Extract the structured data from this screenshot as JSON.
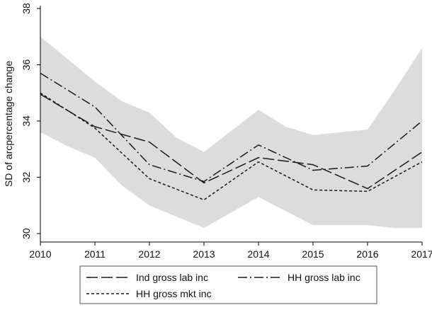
{
  "chart_data": {
    "type": "line",
    "xlabel": "",
    "ylabel": "SD of arcpercentage change",
    "x": [
      2010,
      2011,
      2012,
      2013,
      2014,
      2015,
      2016,
      2017
    ],
    "xlim": [
      2010,
      2017
    ],
    "ylim": [
      29.7,
      38.1
    ],
    "yticks": [
      30,
      32,
      34,
      36,
      38
    ],
    "grid": false,
    "legend_position": "bottom",
    "band": {
      "x": [
        2010,
        2010.5,
        2011,
        2011.5,
        2012,
        2012.5,
        2013,
        2014,
        2014.5,
        2015,
        2016,
        2016.5,
        2017
      ],
      "upper": [
        37.0,
        36.2,
        35.4,
        34.7,
        34.3,
        33.4,
        32.9,
        34.4,
        33.8,
        33.5,
        33.7,
        35.1,
        36.6
      ],
      "lower": [
        33.6,
        33.1,
        32.7,
        31.7,
        31.0,
        30.6,
        30.2,
        31.3,
        30.8,
        30.3,
        30.3,
        30.2,
        30.2
      ]
    },
    "series": [
      {
        "name": "Ind gross lab inc",
        "values": [
          34.95,
          33.8,
          33.25,
          31.8,
          32.7,
          32.45,
          31.6,
          32.9
        ]
      },
      {
        "name": "HH gross lab inc",
        "values": [
          35.7,
          34.5,
          32.45,
          31.85,
          33.15,
          32.25,
          32.4,
          34.0
        ]
      },
      {
        "name": "HH gross mkt inc",
        "values": [
          35.0,
          33.75,
          31.95,
          31.2,
          32.55,
          31.55,
          31.5,
          32.55
        ]
      }
    ],
    "colors": {
      "band": "#dcdcdc",
      "line": "#1a1a1a",
      "axis": "#000000",
      "background": "#ffffff",
      "legend_border": "#555555"
    }
  }
}
